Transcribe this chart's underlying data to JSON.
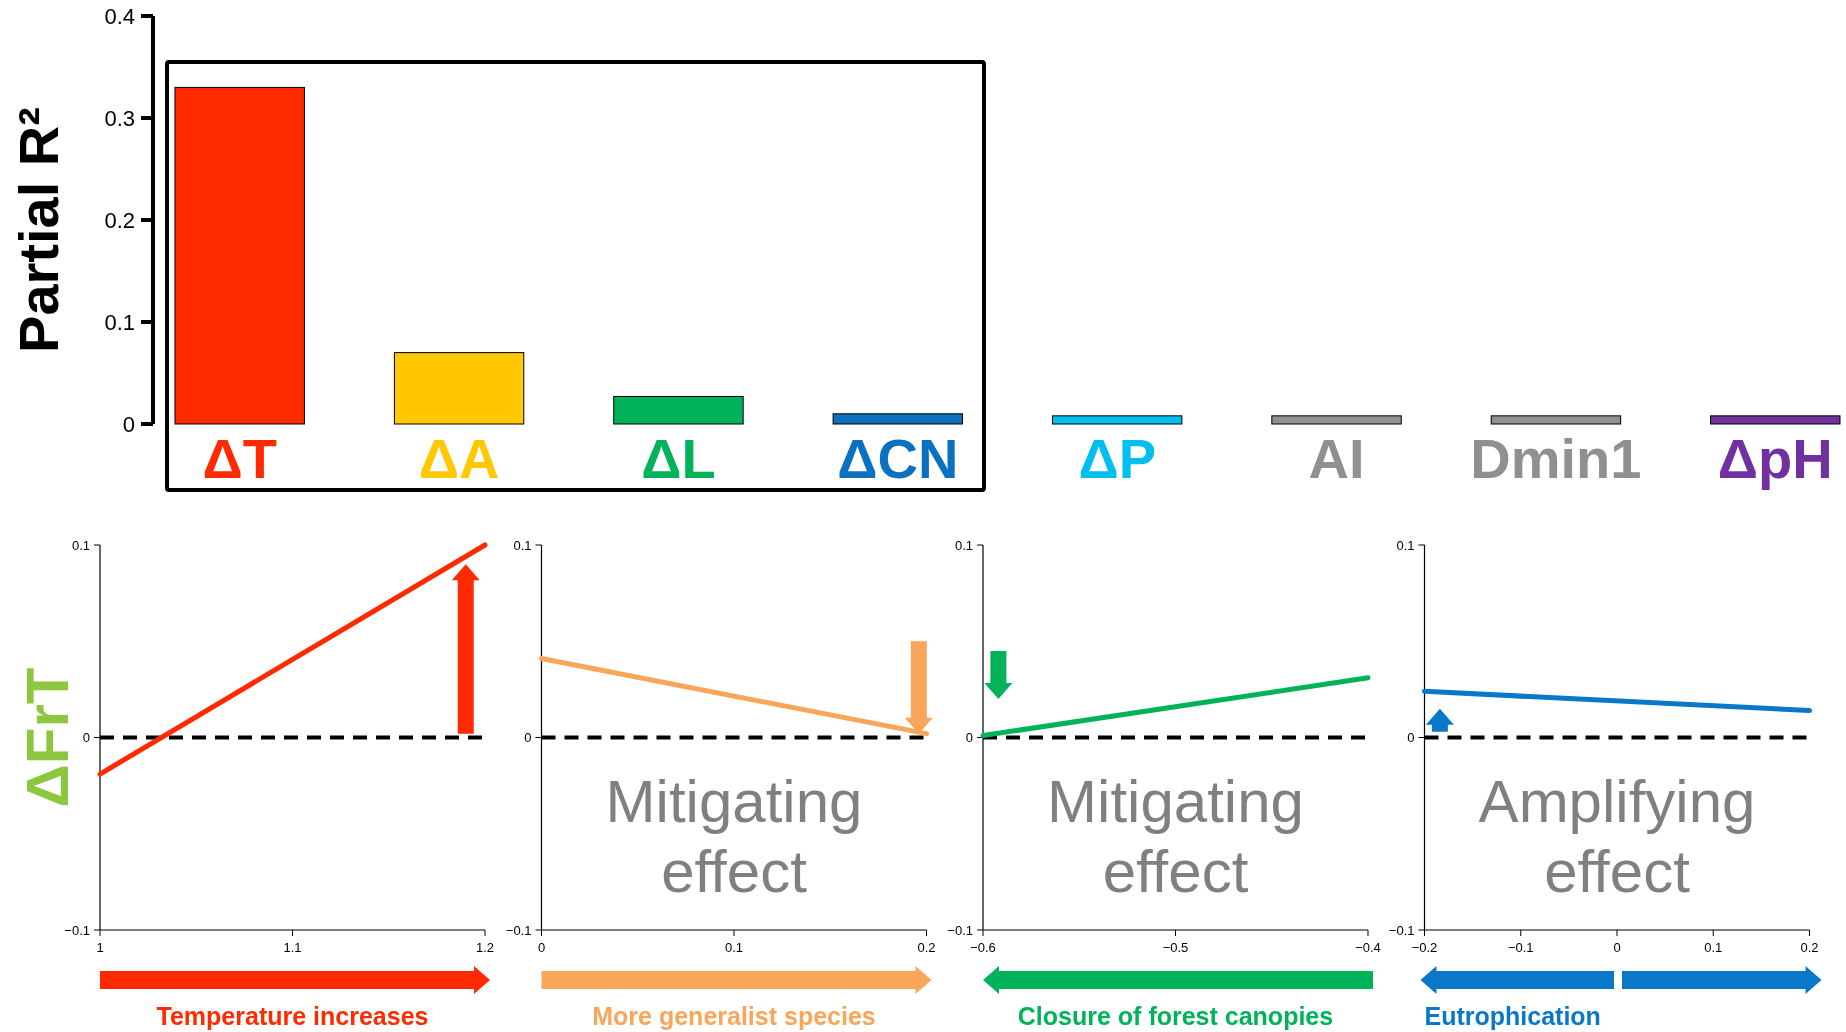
{
  "chart_data": [
    {
      "type": "bar",
      "ylabel": "Partial R²",
      "categories": [
        "ΔT",
        "ΔA",
        "ΔL",
        "ΔCN",
        "ΔP",
        "AI",
        "Dmin1",
        "ΔpH"
      ],
      "values": [
        0.33,
        0.07,
        0.027,
        0.01,
        0.008,
        0.008,
        0.008,
        0.008
      ],
      "colors": [
        "#ff2a00",
        "#ffc800",
        "#00b359",
        "#0a70c0",
        "#00bff0",
        "#909090",
        "#909090",
        "#7030a0"
      ],
      "ylim": [
        0,
        0.4
      ],
      "yticks": [
        0,
        0.1,
        0.2,
        0.3,
        0.4
      ],
      "grid": false
    },
    {
      "type": "line",
      "ylabel": "ΔFrT",
      "xlabel": "Temperature increases",
      "x": [
        1,
        1.2
      ],
      "series": [
        {
          "color": "#ff2a00",
          "values": [
            -0.019,
            0.1
          ]
        }
      ],
      "xlim": [
        1,
        1.2
      ],
      "xticks": [
        1,
        1.1,
        1.2
      ],
      "ylim": [
        -0.1,
        0.1
      ],
      "yticks": [
        -0.1,
        0,
        0.1
      ],
      "ref_lines": [
        {
          "axis": "y",
          "value": 0,
          "color": "#000000",
          "line_style": "dashed"
        }
      ],
      "grid": false,
      "marker": "none"
    },
    {
      "type": "line",
      "xlabel": "More generalist species",
      "x": [
        0,
        0.2
      ],
      "series": [
        {
          "color": "#f9a55a",
          "values": [
            0.041,
            0.002
          ]
        }
      ],
      "xlim": [
        0,
        0.2
      ],
      "xticks": [
        0,
        0.1,
        0.2
      ],
      "ylim": [
        -0.1,
        0.1
      ],
      "yticks": [
        -0.1,
        0,
        0.1
      ],
      "ref_lines": [
        {
          "axis": "y",
          "value": 0,
          "color": "#000000",
          "line_style": "dashed"
        }
      ],
      "annotations": [
        "Mitigating effect"
      ],
      "grid": false,
      "marker": "none"
    },
    {
      "type": "line",
      "xlabel": "Closure of forest canopies",
      "x": [
        -0.6,
        -0.4
      ],
      "series": [
        {
          "color": "#00b359",
          "values": [
            0.001,
            0.031
          ]
        }
      ],
      "xlim": [
        -0.6,
        -0.4
      ],
      "xticks": [
        -0.6,
        -0.5,
        -0.4
      ],
      "ylim": [
        -0.1,
        0.1
      ],
      "yticks": [
        -0.1,
        0,
        0.1
      ],
      "ref_lines": [
        {
          "axis": "y",
          "value": 0,
          "color": "#000000",
          "line_style": "dashed"
        }
      ],
      "annotations": [
        "Mitigating effect"
      ],
      "grid": false,
      "marker": "none"
    },
    {
      "type": "line",
      "xlabel": "Eutrophication",
      "x": [
        -0.2,
        0.2
      ],
      "series": [
        {
          "color": "#0a78c8",
          "values": [
            0.024,
            0.014
          ]
        }
      ],
      "xlim": [
        -0.2,
        0.2
      ],
      "xticks": [
        -0.2,
        -0.1,
        0,
        0.1,
        0.2
      ],
      "ylim": [
        -0.1,
        0.1
      ],
      "yticks": [
        -0.1,
        0,
        0.1
      ],
      "ref_lines": [
        {
          "axis": "y",
          "value": 0,
          "color": "#000000",
          "line_style": "dashed"
        }
      ],
      "annotations": [
        "Amplifying effect"
      ],
      "grid": false,
      "marker": "none"
    }
  ]
}
